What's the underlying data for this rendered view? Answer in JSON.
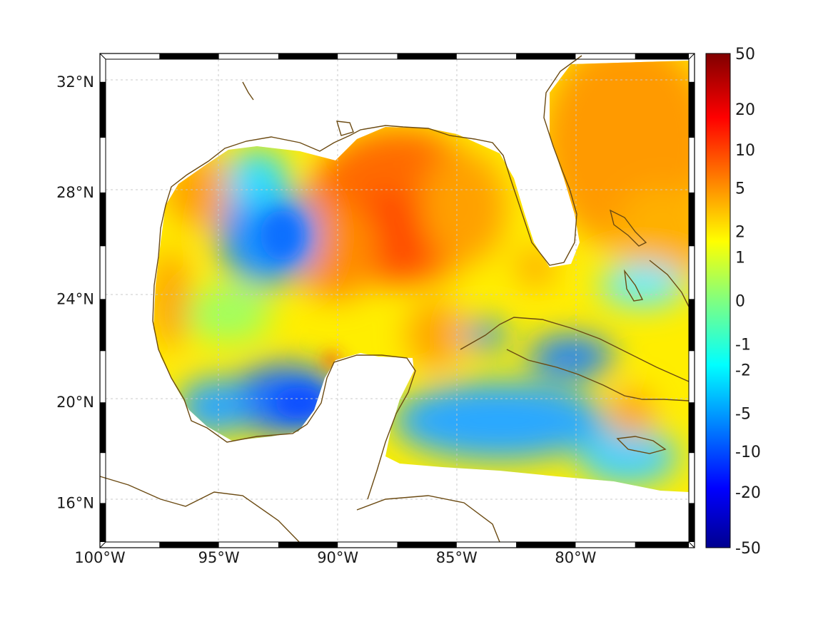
{
  "map": {
    "type": "heatmap",
    "projection": "Mercator",
    "lon_range": [
      -100,
      -75
    ],
    "lat_range": [
      14.2,
      33
    ],
    "grid": true,
    "x_ticks": [
      {
        "value": -100,
        "label": "100°W"
      },
      {
        "value": -95,
        "label": "95°W"
      },
      {
        "value": -90,
        "label": "90°W"
      },
      {
        "value": -85,
        "label": "85°W"
      },
      {
        "value": -80,
        "label": "80°W"
      }
    ],
    "y_ticks": [
      {
        "value": 32,
        "label": "32°N"
      },
      {
        "value": 28,
        "label": "28°N"
      },
      {
        "value": 24,
        "label": "24°N"
      },
      {
        "value": 20,
        "label": "20°N"
      },
      {
        "value": 16,
        "label": "16°N"
      }
    ],
    "colors": {
      "coastline": "#6b4a12",
      "grid": "#c8c8c8",
      "frame": "#000000",
      "land": "#ffffff"
    }
  },
  "colorbar": {
    "colormap": "jet",
    "scale": "symmetric-log",
    "range": [
      -50,
      50
    ],
    "labels": [
      {
        "value": 50,
        "label": "50"
      },
      {
        "value": 20,
        "label": "20"
      },
      {
        "value": 10,
        "label": "10"
      },
      {
        "value": 5,
        "label": "5"
      },
      {
        "value": 2,
        "label": "2"
      },
      {
        "value": 1,
        "label": "1"
      },
      {
        "value": 0,
        "label": "0"
      },
      {
        "value": -1,
        "label": "-1"
      },
      {
        "value": -2,
        "label": "-2"
      },
      {
        "value": -5,
        "label": "-5"
      },
      {
        "value": -10,
        "label": "-10"
      },
      {
        "value": -20,
        "label": "-20"
      },
      {
        "value": -50,
        "label": "-50"
      }
    ]
  },
  "field_regions": [
    {
      "name": "northern-gulf-high",
      "approx_value": 8
    },
    {
      "name": "atlantic-east-of-florida",
      "approx_value": 4
    },
    {
      "name": "western-gulf-low",
      "approx_value": -4
    },
    {
      "name": "bay-of-campeche-low",
      "approx_value": -6
    },
    {
      "name": "caribbean-low",
      "approx_value": -3
    },
    {
      "name": "texas-coast-moderate",
      "approx_value": 4
    }
  ]
}
